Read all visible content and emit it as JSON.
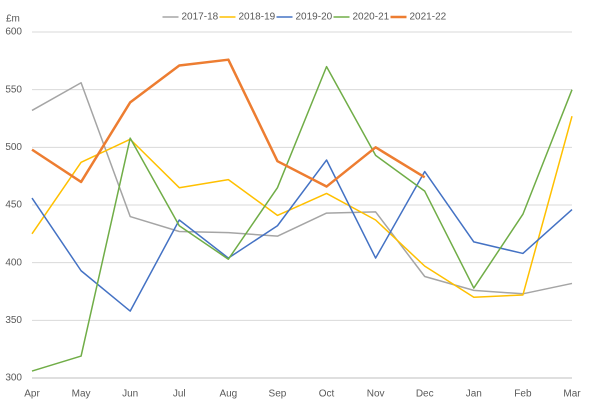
{
  "chart_data": {
    "type": "line",
    "y_unit_label": "£m",
    "categories": [
      "Apr",
      "May",
      "Jun",
      "Jul",
      "Aug",
      "Sep",
      "Oct",
      "Nov",
      "Dec",
      "Jan",
      "Feb",
      "Mar"
    ],
    "series": [
      {
        "name": "2017-18",
        "color": "#a5a5a5",
        "values": [
          532,
          556,
          440,
          427,
          426,
          423,
          443,
          444,
          388,
          376,
          373,
          382
        ]
      },
      {
        "name": "2018-19",
        "color": "#ffc000",
        "values": [
          425,
          487,
          507,
          465,
          472,
          441,
          460,
          437,
          397,
          370,
          372,
          527
        ]
      },
      {
        "name": "2019-20",
        "color": "#4472c4",
        "values": [
          456,
          393,
          358,
          437,
          404,
          432,
          489,
          404,
          479,
          418,
          408,
          446
        ]
      },
      {
        "name": "2020-21",
        "color": "#70ad47",
        "values": [
          306,
          319,
          508,
          432,
          403,
          465,
          570,
          493,
          462,
          378,
          442,
          550
        ]
      },
      {
        "name": "2021-22",
        "color": "#ed7d31",
        "values": [
          498,
          470,
          539,
          571,
          576,
          488,
          466,
          500,
          474,
          null,
          null,
          null
        ]
      }
    ],
    "ylim": [
      300,
      600
    ],
    "yticks": [
      300,
      350,
      400,
      450,
      500,
      550,
      600
    ],
    "grid": true,
    "legend": "top"
  }
}
